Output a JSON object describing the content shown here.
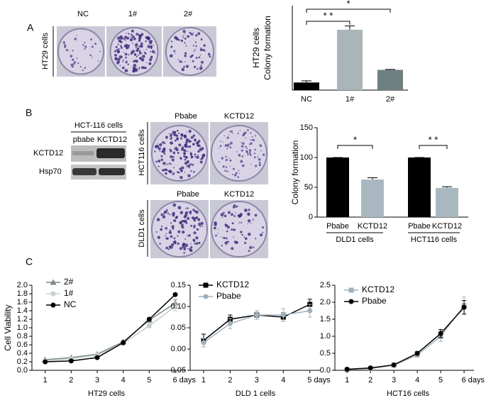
{
  "panels": {
    "a": {
      "label": "A",
      "photo_labels": [
        "NC",
        "1#",
        "2#"
      ],
      "row_label": "HT29 cells"
    },
    "b": {
      "label": "B",
      "blot_title": "HCT-116 cells",
      "blot_columns": [
        "pbabe",
        "KCTD12"
      ],
      "blot_rows": [
        "KCTD12",
        "Hsp70"
      ],
      "photo_rows": [
        {
          "name": "HCT116 cells",
          "labels": [
            "Pbabe",
            "KCTD12"
          ]
        },
        {
          "name": "DLD1 cells",
          "labels": [
            "Pbabe",
            "KCTD12"
          ]
        }
      ]
    },
    "c": {
      "label": "C"
    }
  },
  "chart_data": [
    {
      "type": "bar",
      "ylabel": [
        "HT29 cells",
        "Colony formation"
      ],
      "categories": [
        "NC",
        "1#",
        "2#"
      ],
      "values": [
        18,
        143,
        48
      ],
      "errors": [
        4,
        9,
        1
      ],
      "colors": [
        "#000000",
        "#a9b5b8",
        "#6f8081"
      ],
      "ylim": [
        0,
        200
      ],
      "annotations": [
        "* *",
        "*"
      ]
    },
    {
      "type": "bar",
      "ylabel": [
        "Colony formation"
      ],
      "categories": [
        "Pbabe",
        "KCTD12",
        "Pbabe",
        "KCTD12"
      ],
      "groups": [
        "DLD1 cells",
        "HCT116 cells"
      ],
      "values": [
        100,
        63,
        100,
        49
      ],
      "errors": [
        0,
        3,
        0,
        2
      ],
      "colors": [
        "#000000",
        "#a9b8c0",
        "#000000",
        "#a9b8c0"
      ],
      "ylim": [
        0,
        150
      ],
      "yticks": [
        0,
        50,
        100,
        150
      ],
      "annotations": [
        "*",
        "* *"
      ]
    },
    {
      "type": "line",
      "ylabel": "Cell Viability",
      "xlabel": "HT29 cells",
      "xlim": [
        0.6,
        6.3
      ],
      "xticks": [
        1,
        2,
        3,
        4,
        5,
        {
          "value": 6,
          "label": "6 days"
        }
      ],
      "ylim": [
        0,
        2
      ],
      "yticks": [
        {
          "value": 0,
          "label": "0.0"
        },
        0.2,
        0.4,
        0.6,
        0.8,
        {
          "value": 1,
          "label": "1.0"
        },
        1.2,
        1.4,
        1.6,
        1.8,
        {
          "value": 2,
          "label": "2.0"
        }
      ],
      "series": [
        {
          "name": "2#",
          "color": "#7d8a8a",
          "marker": "triangle",
          "values": [
            0.25,
            0.3,
            0.38,
            0.67,
            1.18,
            1.58
          ],
          "errors": [
            0.01,
            0.01,
            0.02,
            0.03,
            0.04,
            0.08
          ]
        },
        {
          "name": "1#",
          "color": "#c5cfcf",
          "marker": "circle",
          "values": [
            0.22,
            0.27,
            0.36,
            0.63,
            1.05,
            1.5
          ],
          "errors": [
            0.01,
            0.01,
            0.02,
            0.03,
            0.05,
            0.1
          ]
        },
        {
          "name": "NC",
          "color": "#000000",
          "marker": "circle",
          "values": [
            0.2,
            0.22,
            0.3,
            0.65,
            1.2,
            1.78
          ],
          "errors": [
            0.01,
            0.01,
            0.02,
            0.02,
            0.03,
            0.02
          ]
        }
      ]
    },
    {
      "type": "line",
      "xlabel": "DLD 1   cells",
      "xlim": [
        0.6,
        5.3
      ],
      "xticks": [
        1,
        2,
        3,
        4,
        {
          "value": 5,
          "label": "5 days"
        }
      ],
      "ylim": [
        -0.05,
        0.15
      ],
      "yticks": [
        -0.05,
        {
          "value": 0,
          "label": "0.00"
        },
        0.05,
        {
          "value": 0.1,
          "label": "0.10"
        },
        0.15
      ],
      "series": [
        {
          "name": "KCTD12",
          "color": "#000000",
          "marker": "square",
          "values": [
            0.02,
            0.07,
            0.08,
            0.075,
            0.105
          ],
          "errors": [
            0.015,
            0.01,
            0.01,
            0.01,
            0.012
          ]
        },
        {
          "name": "Pbabe",
          "color": "#9fb0bb",
          "marker": "circle",
          "values": [
            0.015,
            0.06,
            0.08,
            0.08,
            0.09
          ],
          "errors": [
            0.01,
            0.012,
            0.01,
            0.015,
            0.015
          ]
        }
      ]
    },
    {
      "type": "line",
      "xlabel": "HCT16  cells",
      "xlim": [
        0.6,
        6.3
      ],
      "xticks": [
        1,
        2,
        3,
        4,
        5,
        {
          "value": 6,
          "label": "6 days"
        }
      ],
      "ylim": [
        0,
        2.5
      ],
      "yticks": [
        {
          "value": 0,
          "label": "0.0"
        },
        0.5,
        {
          "value": 1,
          "label": "1.0"
        },
        1.5,
        {
          "value": 2,
          "label": "2.0"
        },
        2.5
      ],
      "series": [
        {
          "name": "KCTD12",
          "color": "#9fb0bb",
          "marker": "square",
          "values": [
            0.02,
            0.05,
            0.15,
            0.45,
            1.0,
            1.9
          ],
          "errors": [
            0.02,
            0.03,
            0.03,
            0.05,
            0.15,
            0.25
          ]
        },
        {
          "name": "Pbabe",
          "color": "#000000",
          "marker": "circle",
          "values": [
            0.03,
            0.07,
            0.16,
            0.5,
            1.08,
            1.85
          ],
          "errors": [
            0.02,
            0.02,
            0.03,
            0.05,
            0.12,
            0.2
          ]
        }
      ]
    }
  ]
}
